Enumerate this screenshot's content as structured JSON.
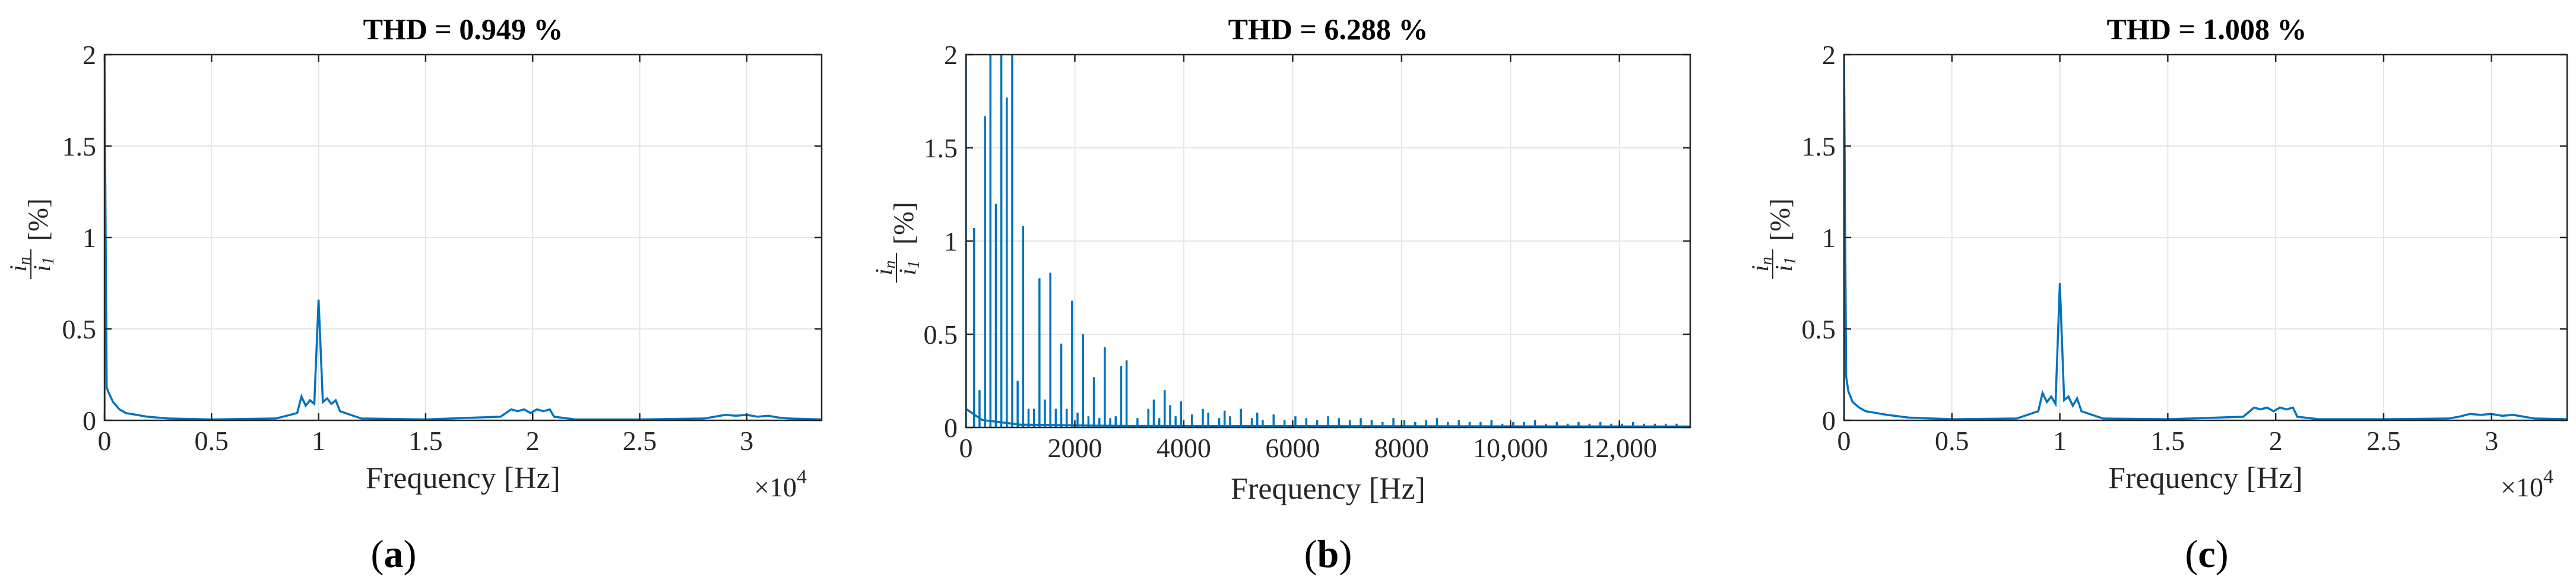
{
  "chart_data": [
    {
      "id": "a",
      "type": "line",
      "title": "THD = 0.949 %",
      "xlabel": "Frequency [Hz]",
      "ylabel": "i_n / i_1 [%]",
      "ylabel_unit": "[%]",
      "ylabel_num": "i",
      "ylabel_num_sub": "n",
      "ylabel_den": "i",
      "ylabel_den_sub": "1",
      "x_exponent_label": "×10",
      "x_exponent": "4",
      "subfigure_label": "a",
      "xlim": [
        0,
        33500
      ],
      "ylim": [
        0,
        2
      ],
      "grid": true,
      "x_ticks": [
        0,
        5000,
        10000,
        15000,
        20000,
        25000,
        30000
      ],
      "x_tick_labels": [
        "0",
        "0.5",
        "1",
        "1.5",
        "2",
        "2.5",
        "3"
      ],
      "y_ticks": [
        0,
        0.5,
        1,
        1.5,
        2
      ],
      "y_tick_labels": [
        "0",
        "0.5",
        "1",
        "1.5",
        "2"
      ],
      "series": [
        {
          "line_color": "#0072bd",
          "x": [
            0,
            100,
            200,
            400,
            700,
            1000,
            1500,
            2000,
            3000,
            5000,
            8000,
            9000,
            9200,
            9400,
            9600,
            9800,
            10000,
            10200,
            10400,
            10600,
            10800,
            11000,
            12000,
            15000,
            18500,
            19000,
            19300,
            19600,
            19900,
            20200,
            20500,
            20800,
            21000,
            22000,
            25000,
            28000,
            28500,
            29000,
            29500,
            30000,
            30500,
            31000,
            31500,
            32000,
            33500
          ],
          "y": [
            2.0,
            0.18,
            0.15,
            0.1,
            0.06,
            0.04,
            0.03,
            0.02,
            0.01,
            0.005,
            0.01,
            0.04,
            0.13,
            0.08,
            0.11,
            0.09,
            0.66,
            0.1,
            0.12,
            0.09,
            0.11,
            0.05,
            0.01,
            0.005,
            0.02,
            0.06,
            0.05,
            0.06,
            0.04,
            0.06,
            0.05,
            0.06,
            0.02,
            0.005,
            0.005,
            0.01,
            0.02,
            0.03,
            0.025,
            0.03,
            0.02,
            0.025,
            0.015,
            0.01,
            0.005
          ]
        }
      ]
    },
    {
      "id": "b",
      "type": "line",
      "title": "THD = 6.288 %",
      "xlabel": "Frequency [Hz]",
      "ylabel": "i_n / i_1 [%]",
      "ylabel_unit": "[%]",
      "ylabel_num": "i",
      "ylabel_num_sub": "n",
      "ylabel_den": "i",
      "ylabel_den_sub": "1",
      "subfigure_label": "b",
      "xlim": [
        0,
        13300
      ],
      "ylim": [
        0,
        2
      ],
      "grid": true,
      "x_ticks": [
        0,
        2000,
        4000,
        6000,
        8000,
        10000,
        12000
      ],
      "x_tick_labels": [
        "0",
        "2000",
        "4000",
        "6000",
        "8000",
        "10,000",
        "12,000"
      ],
      "y_ticks": [
        0,
        0.5,
        1,
        1.5,
        2
      ],
      "y_tick_labels": [
        "0",
        "0.5",
        "1",
        "1.5",
        "2"
      ],
      "series": [
        {
          "line_color": "#0072bd",
          "harmonics_x": [
            150,
            250,
            350,
            450,
            550,
            650,
            750,
            850,
            950,
            1050,
            1150,
            1250,
            1350,
            1450,
            1550,
            1650,
            1750,
            1850,
            1950,
            2050,
            2150,
            2250,
            2350,
            2450,
            2550,
            2650,
            2750,
            2850,
            2950,
            3150,
            3350,
            3450,
            3550,
            3650,
            3750,
            3850,
            3950,
            4150,
            4350,
            4450,
            4650,
            4750,
            4850,
            5050,
            5250,
            5350,
            5450,
            5650,
            5850,
            6050,
            6250,
            6450,
            6650,
            6850,
            7050,
            7250,
            7450,
            7650,
            7850,
            8050,
            8250,
            8450,
            8650,
            8850,
            9050,
            9250,
            9450,
            9650,
            9850,
            10050,
            10250,
            10450,
            10650,
            10850,
            11050,
            11250,
            11450,
            11650,
            11850,
            12050,
            12250,
            12450,
            12650,
            12850,
            13050
          ],
          "harmonics_y": [
            1.07,
            0.2,
            1.67,
            2.0,
            1.2,
            2.0,
            1.77,
            2.0,
            0.25,
            1.08,
            0.1,
            0.1,
            0.8,
            0.15,
            0.83,
            0.1,
            0.45,
            0.1,
            0.68,
            0.08,
            0.5,
            0.06,
            0.27,
            0.05,
            0.43,
            0.05,
            0.06,
            0.33,
            0.36,
            0.05,
            0.1,
            0.15,
            0.05,
            0.2,
            0.12,
            0.06,
            0.14,
            0.07,
            0.1,
            0.08,
            0.05,
            0.09,
            0.06,
            0.1,
            0.05,
            0.08,
            0.04,
            0.07,
            0.04,
            0.06,
            0.05,
            0.04,
            0.06,
            0.05,
            0.04,
            0.05,
            0.04,
            0.03,
            0.05,
            0.04,
            0.03,
            0.04,
            0.05,
            0.03,
            0.04,
            0.03,
            0.03,
            0.04,
            0.02,
            0.03,
            0.03,
            0.04,
            0.02,
            0.03,
            0.02,
            0.03,
            0.02,
            0.03,
            0.02,
            0.02,
            0.03,
            0.02,
            0.02,
            0.02,
            0.02
          ]
        }
      ]
    },
    {
      "id": "c",
      "type": "line",
      "title": "THD = 1.008 %",
      "xlabel": "Frequency [Hz]",
      "ylabel": "i_n / i_1 [%]",
      "ylabel_unit": "[%]",
      "ylabel_num": "i",
      "ylabel_num_sub": "n",
      "ylabel_den": "i",
      "ylabel_den_sub": "1",
      "x_exponent_label": "×10",
      "x_exponent": "4",
      "subfigure_label": "c",
      "xlim": [
        0,
        33500
      ],
      "ylim": [
        0,
        2
      ],
      "grid": true,
      "x_ticks": [
        0,
        5000,
        10000,
        15000,
        20000,
        25000,
        30000
      ],
      "x_tick_labels": [
        "0",
        "0.5",
        "1",
        "1.5",
        "2",
        "2.5",
        "3"
      ],
      "y_ticks": [
        0,
        0.5,
        1,
        1.5,
        2
      ],
      "y_tick_labels": [
        "0",
        "0.5",
        "1",
        "1.5",
        "2"
      ],
      "series": [
        {
          "line_color": "#0072bd",
          "x": [
            0,
            100,
            200,
            400,
            700,
            1000,
            1500,
            2000,
            3000,
            5000,
            8000,
            9000,
            9200,
            9400,
            9600,
            9800,
            10000,
            10200,
            10400,
            10600,
            10800,
            11000,
            12000,
            15000,
            18500,
            19000,
            19300,
            19600,
            19900,
            20200,
            20500,
            20800,
            21000,
            22000,
            25000,
            28000,
            28500,
            29000,
            29500,
            30000,
            30500,
            31000,
            31500,
            32000,
            33500
          ],
          "y": [
            2.0,
            0.24,
            0.16,
            0.1,
            0.07,
            0.05,
            0.04,
            0.03,
            0.015,
            0.006,
            0.01,
            0.05,
            0.15,
            0.1,
            0.13,
            0.09,
            0.75,
            0.11,
            0.13,
            0.08,
            0.12,
            0.05,
            0.01,
            0.006,
            0.02,
            0.07,
            0.06,
            0.07,
            0.05,
            0.07,
            0.06,
            0.07,
            0.02,
            0.006,
            0.006,
            0.01,
            0.02,
            0.035,
            0.03,
            0.035,
            0.025,
            0.03,
            0.02,
            0.01,
            0.006
          ]
        }
      ]
    }
  ]
}
